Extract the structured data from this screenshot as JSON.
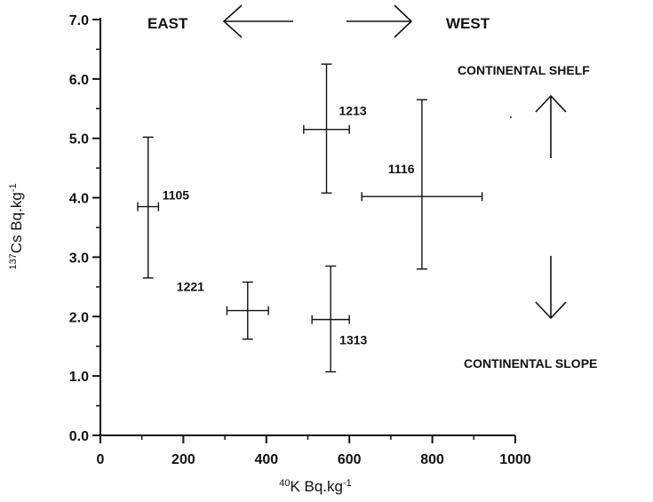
{
  "chart_data": {
    "type": "scatter",
    "title": "",
    "xlabel_sup": "40",
    "xlabel_main": "K Bq.kg",
    "xlabel_exp": "-1",
    "ylabel_sup": "137",
    "ylabel_main": "Cs Bq.kg",
    "ylabel_exp": "-1",
    "xlim": [
      0,
      1000
    ],
    "ylim": [
      0,
      7
    ],
    "x_ticks": [
      "0",
      "200",
      "400",
      "600",
      "800",
      "1000"
    ],
    "y_ticks": [
      "0.0",
      "1.0",
      "2.0",
      "3.0",
      "4.0",
      "5.0",
      "6.0",
      "7.0"
    ],
    "grid": false,
    "points": [
      {
        "label": "1105",
        "x": 115,
        "y": 3.85,
        "x_err": [
          90,
          140
        ],
        "y_err": [
          2.65,
          5.02
        ]
      },
      {
        "label": "1213",
        "x": 545,
        "y": 5.15,
        "x_err": [
          490,
          600
        ],
        "y_err": [
          4.08,
          6.25
        ]
      },
      {
        "label": "1116",
        "x": 775,
        "y": 4.02,
        "x_err": [
          630,
          920
        ],
        "y_err": [
          2.8,
          5.65
        ]
      },
      {
        "label": "1221",
        "x": 355,
        "y": 2.1,
        "x_err": [
          305,
          405
        ],
        "y_err": [
          1.62,
          2.58
        ]
      },
      {
        "label": "1313",
        "x": 555,
        "y": 1.95,
        "x_err": [
          510,
          600
        ],
        "y_err": [
          1.07,
          2.85
        ]
      }
    ],
    "annotations": {
      "east": "EAST",
      "west": "WEST",
      "shelf": "CONTINENTAL SHELF",
      "slope": "CONTINENTAL SLOPE"
    }
  }
}
